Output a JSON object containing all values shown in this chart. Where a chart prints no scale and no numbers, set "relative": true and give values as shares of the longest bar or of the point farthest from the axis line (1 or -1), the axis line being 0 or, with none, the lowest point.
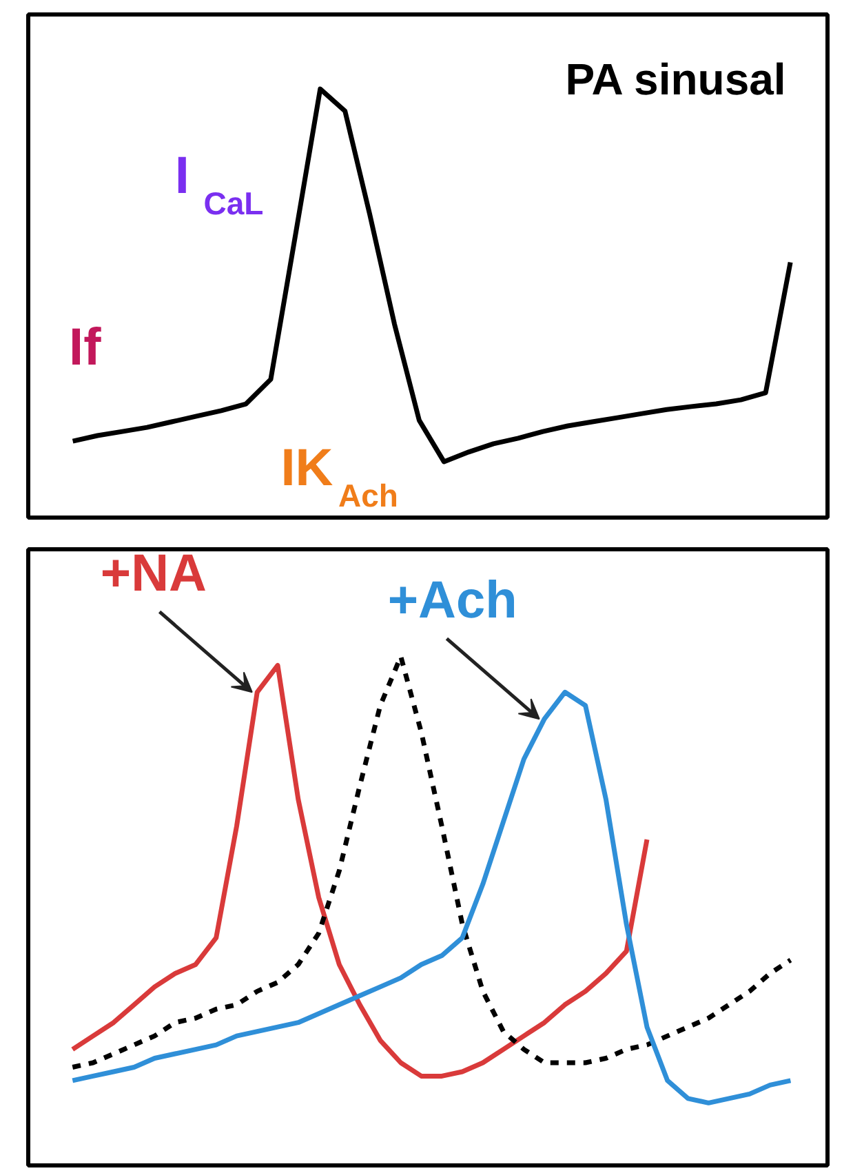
{
  "chart_data": [
    {
      "type": "line",
      "relative": true,
      "title": "PA sinusal",
      "annotations": [
        "I$_{CaL}$",
        "If",
        "IK$_{Ach}$"
      ],
      "categories": [
        null,
        null,
        null,
        null,
        null,
        null,
        null,
        null,
        null,
        null,
        null,
        null,
        null,
        null,
        null,
        null,
        null,
        null,
        null,
        null,
        null,
        null,
        null,
        null,
        null,
        null,
        null,
        null,
        null,
        null
      ],
      "series": [
        {
          "color": "#000000",
          "values": [
            0.055,
            0.07,
            0.081,
            0.092,
            0.107,
            0.122,
            0.137,
            0.155,
            0.221,
            0.609,
            1,
            0.941,
            0.664,
            0.369,
            0.111,
            0,
            0.026,
            0.048,
            0.063,
            0.081,
            0.096,
            0.107,
            0.118,
            0.129,
            0.14,
            0.148,
            0.155,
            0.166,
            0.185,
            0.535
          ]
        }
      ]
    },
    {
      "type": "line",
      "relative": true,
      "categories": [
        null,
        null,
        null,
        null,
        null,
        null,
        null,
        null,
        null,
        null,
        null,
        null,
        null,
        null,
        null,
        null,
        null,
        null,
        null,
        null,
        null,
        null,
        null,
        null,
        null,
        null,
        null,
        null,
        null,
        null,
        null,
        null,
        null,
        null,
        null,
        null
      ],
      "series": [
        {
          "name": "+NA",
          "color": "#d93a3a",
          "values": [
            0.12,
            0.15,
            0.18,
            0.22,
            0.26,
            0.29,
            0.31,
            0.37,
            0.62,
            0.92,
            0.98,
            0.68,
            0.46,
            0.31,
            0.22,
            0.14,
            0.09,
            0.06,
            0.06,
            0.07,
            0.09,
            0.12,
            0.15,
            0.18,
            0.22,
            0.25,
            0.29,
            0.34,
            0.59,
            null,
            null,
            null,
            null,
            null,
            null,
            null
          ]
        },
        {
          "color": "#000000",
          "line_style": "dashed",
          "values": [
            0.08,
            0.09,
            0.11,
            0.13,
            0.15,
            0.18,
            0.19,
            0.21,
            0.22,
            0.25,
            0.27,
            0.31,
            0.38,
            0.52,
            0.71,
            0.89,
            1.0,
            0.83,
            0.62,
            0.4,
            0.25,
            0.16,
            0.12,
            0.09,
            0.09,
            0.09,
            0.1,
            0.12,
            0.13,
            0.15,
            0.17,
            0.19,
            0.22,
            0.25,
            0.29,
            0.32
          ]
        },
        {
          "name": "+Ach",
          "color": "#2f8fd8",
          "values": [
            0.05,
            0.06,
            0.07,
            0.08,
            0.1,
            0.11,
            0.12,
            0.13,
            0.15,
            0.16,
            0.17,
            0.18,
            0.2,
            0.22,
            0.24,
            0.26,
            0.28,
            0.31,
            0.33,
            0.37,
            0.49,
            0.63,
            0.77,
            0.86,
            0.92,
            0.89,
            0.68,
            0.4,
            0.17,
            0.05,
            0.01,
            0,
            0.01,
            0.02,
            0.04,
            0.05
          ]
        }
      ]
    }
  ]
}
